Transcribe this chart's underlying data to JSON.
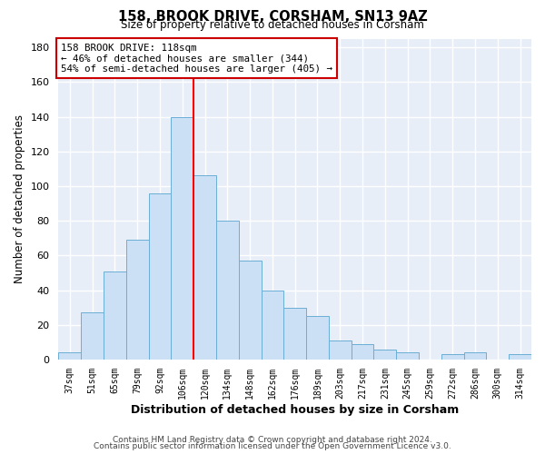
{
  "title": "158, BROOK DRIVE, CORSHAM, SN13 9AZ",
  "subtitle": "Size of property relative to detached houses in Corsham",
  "xlabel": "Distribution of detached houses by size in Corsham",
  "ylabel": "Number of detached properties",
  "bar_labels": [
    "37sqm",
    "51sqm",
    "65sqm",
    "79sqm",
    "92sqm",
    "106sqm",
    "120sqm",
    "134sqm",
    "148sqm",
    "162sqm",
    "176sqm",
    "189sqm",
    "203sqm",
    "217sqm",
    "231sqm",
    "245sqm",
    "259sqm",
    "272sqm",
    "286sqm",
    "300sqm",
    "314sqm"
  ],
  "bar_values": [
    4,
    27,
    51,
    69,
    96,
    140,
    106,
    80,
    57,
    40,
    30,
    25,
    11,
    9,
    6,
    4,
    0,
    3,
    4,
    0,
    3
  ],
  "bar_color": "#cce0f5",
  "bar_edge_color": "#6baed6",
  "vline_index": 5,
  "vline_color": "red",
  "ylim": [
    0,
    185
  ],
  "yticks": [
    0,
    20,
    40,
    60,
    80,
    100,
    120,
    140,
    160,
    180
  ],
  "annotation_title": "158 BROOK DRIVE: 118sqm",
  "annotation_line1": "← 46% of detached houses are smaller (344)",
  "annotation_line2": "54% of semi-detached houses are larger (405) →",
  "annotation_box_color": "#ffffff",
  "annotation_box_edge": "#cc0000",
  "footer1": "Contains HM Land Registry data © Crown copyright and database right 2024.",
  "footer2": "Contains public sector information licensed under the Open Government Licence v3.0.",
  "background_color": "#e8eef8"
}
